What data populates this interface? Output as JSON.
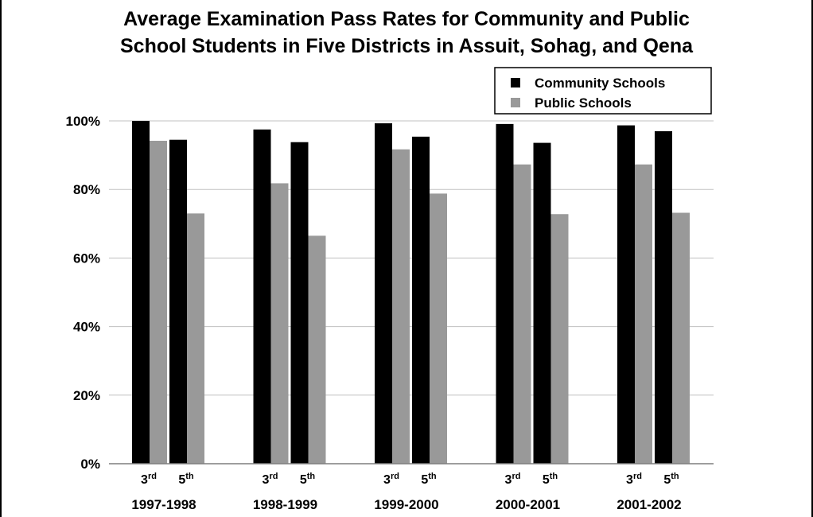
{
  "chart_data": {
    "type": "bar",
    "title_lines": [
      "Average Examination Pass Rates for Community and Public",
      "School Students in Five Districts in Assuit, Sohag, and Qena"
    ],
    "groups": [
      "1997-1998",
      "1998-1999",
      "1999-2000",
      "2000-2001",
      "2001-2002"
    ],
    "subcategories": [
      {
        "base": "3",
        "sup": "rd"
      },
      {
        "base": "5",
        "sup": "th"
      }
    ],
    "series": [
      {
        "name": "Community Schools",
        "color": "#000000",
        "values": [
          [
            100,
            94.5
          ],
          [
            97.5,
            93.8
          ],
          [
            99.3,
            95.4
          ],
          [
            99.1,
            93.6
          ],
          [
            98.7,
            97
          ]
        ]
      },
      {
        "name": "Public Schools",
        "color": "#999999",
        "values": [
          [
            94.2,
            73
          ],
          [
            81.8,
            66.5
          ],
          [
            91.7,
            78.8
          ],
          [
            87.3,
            72.8
          ],
          [
            87.3,
            73.2
          ]
        ]
      }
    ],
    "ylim": [
      0,
      100
    ],
    "yticks": [
      0,
      20,
      40,
      60,
      80,
      100
    ],
    "ytick_labels": [
      "0%",
      "20%",
      "40%",
      "60%",
      "80%",
      "100%"
    ],
    "grid": true,
    "legend_position": "top-right"
  }
}
